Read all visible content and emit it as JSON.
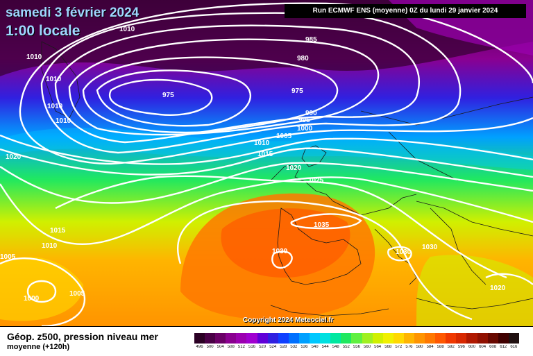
{
  "header": {
    "title": "samedi 3 février 2024",
    "subtitle": "1:00 locale",
    "run_info": "Run ECMWF ENS (moyenne) 0Z du lundi 29 janvier 2024"
  },
  "map": {
    "copyright": "Copyright 2024 Meteociel.fr",
    "isobar_labels": [
      "1010",
      "985",
      "980",
      "975",
      "975",
      "1010",
      "1010",
      "1010",
      "1010",
      "990",
      "995",
      "1000",
      "1005",
      "1020",
      "1010",
      "1015",
      "1020",
      "1025",
      "1015",
      "1010",
      "1035",
      "1030",
      "1030",
      "1030",
      "1005",
      "1000",
      "1005",
      "1020"
    ]
  },
  "footer": {
    "title": "Géop. z500, pression niveau mer",
    "subtitle": "moyenne   (+120h)"
  },
  "legend": {
    "values": [
      "496",
      "500",
      "504",
      "508",
      "512",
      "516",
      "520",
      "524",
      "528",
      "532",
      "536",
      "540",
      "544",
      "548",
      "552",
      "556",
      "560",
      "564",
      "568",
      "572",
      "576",
      "580",
      "584",
      "588",
      "592",
      "596",
      "600",
      "604",
      "608",
      "612",
      "616"
    ],
    "colors": [
      "#2b0024",
      "#4a0046",
      "#6a0066",
      "#8a0090",
      "#9b00b0",
      "#a000d0",
      "#6000d8",
      "#3020e0",
      "#1040ff",
      "#0070ff",
      "#00a0ff",
      "#00c8ff",
      "#00e0e0",
      "#00e8a0",
      "#20e860",
      "#60f040",
      "#a0f020",
      "#d0f000",
      "#f0f000",
      "#ffd800",
      "#ffb400",
      "#ff9400",
      "#ff7800",
      "#ff5800",
      "#f03800",
      "#d82800",
      "#b01800",
      "#901000",
      "#680800",
      "#400000",
      "#201010"
    ]
  }
}
